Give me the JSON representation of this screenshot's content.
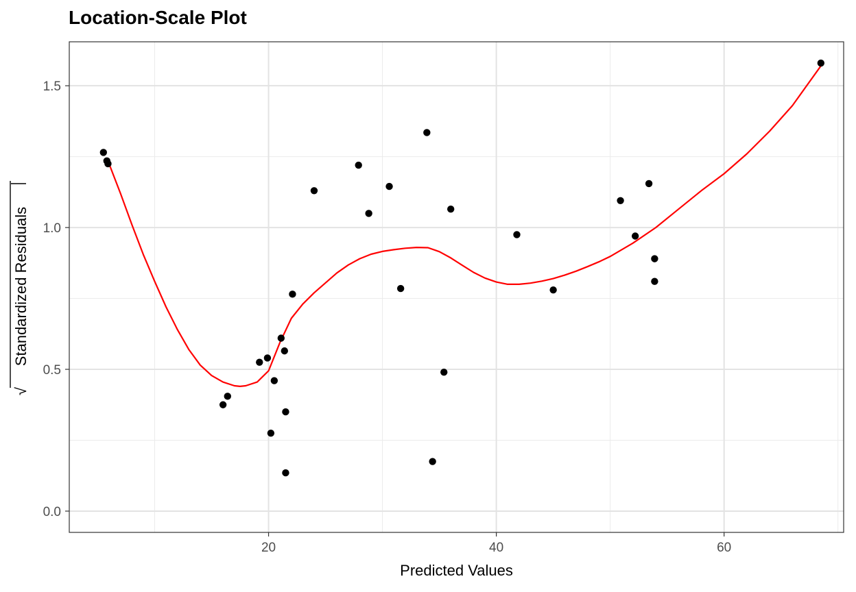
{
  "chart_data": {
    "type": "scatter",
    "title": "Location-Scale Plot",
    "xlabel": "Predicted Values",
    "ylabel": "Standardized Residuals",
    "ylabel_radical": "√",
    "xlim": [
      2.5,
      70.5
    ],
    "ylim": [
      -0.075,
      1.655
    ],
    "x_ticks": [
      20,
      40,
      60
    ],
    "x_tick_labels": [
      "20",
      "40",
      "60"
    ],
    "x_minor_ticks": [
      10,
      30,
      50,
      70
    ],
    "y_ticks": [
      0.0,
      0.5,
      1.0,
      1.5
    ],
    "y_tick_labels": [
      "0.0",
      "0.5",
      "1.0",
      "1.5"
    ],
    "y_minor_ticks": [
      0.25,
      0.75,
      1.25
    ],
    "grid": true,
    "points": {
      "x": [
        5.5,
        5.8,
        5.9,
        16.0,
        16.4,
        19.2,
        19.9,
        20.2,
        20.5,
        21.1,
        21.4,
        21.5,
        21.5,
        22.1,
        24.0,
        27.9,
        28.8,
        30.6,
        31.6,
        33.9,
        34.4,
        35.4,
        36.0,
        41.8,
        45.0,
        50.9,
        52.2,
        53.4,
        53.9,
        53.9,
        68.5
      ],
      "y": [
        1.265,
        1.235,
        1.225,
        0.375,
        0.405,
        0.525,
        0.54,
        0.275,
        0.46,
        0.61,
        0.565,
        0.35,
        0.135,
        0.765,
        1.13,
        1.22,
        1.05,
        1.145,
        0.785,
        1.335,
        0.175,
        0.49,
        1.065,
        0.975,
        0.78,
        1.095,
        0.97,
        1.155,
        0.89,
        0.81,
        1.58
      ],
      "color": "#000000"
    },
    "smooth": {
      "color": "#ff0000",
      "x": [
        5.8,
        7,
        8,
        9,
        10,
        11,
        12,
        13,
        14,
        15,
        16,
        17,
        17.5,
        18,
        19,
        20,
        21,
        22,
        23,
        24,
        25,
        26,
        27,
        28,
        29,
        30,
        31,
        32,
        33,
        34,
        35,
        36,
        37,
        38,
        39,
        40,
        41,
        42,
        43,
        44,
        45,
        46,
        47,
        48,
        49,
        50,
        52,
        54,
        56,
        58,
        60,
        62,
        64,
        66,
        68.5
      ],
      "y": [
        1.245,
        1.12,
        1.01,
        0.905,
        0.81,
        0.72,
        0.64,
        0.57,
        0.515,
        0.478,
        0.455,
        0.442,
        0.44,
        0.442,
        0.455,
        0.495,
        0.595,
        0.68,
        0.73,
        0.77,
        0.805,
        0.84,
        0.868,
        0.89,
        0.906,
        0.916,
        0.922,
        0.927,
        0.93,
        0.929,
        0.915,
        0.893,
        0.867,
        0.842,
        0.822,
        0.808,
        0.8,
        0.8,
        0.804,
        0.811,
        0.82,
        0.832,
        0.846,
        0.862,
        0.879,
        0.898,
        0.945,
        1.0,
        1.065,
        1.13,
        1.19,
        1.26,
        1.34,
        1.43,
        1.57
      ]
    }
  }
}
